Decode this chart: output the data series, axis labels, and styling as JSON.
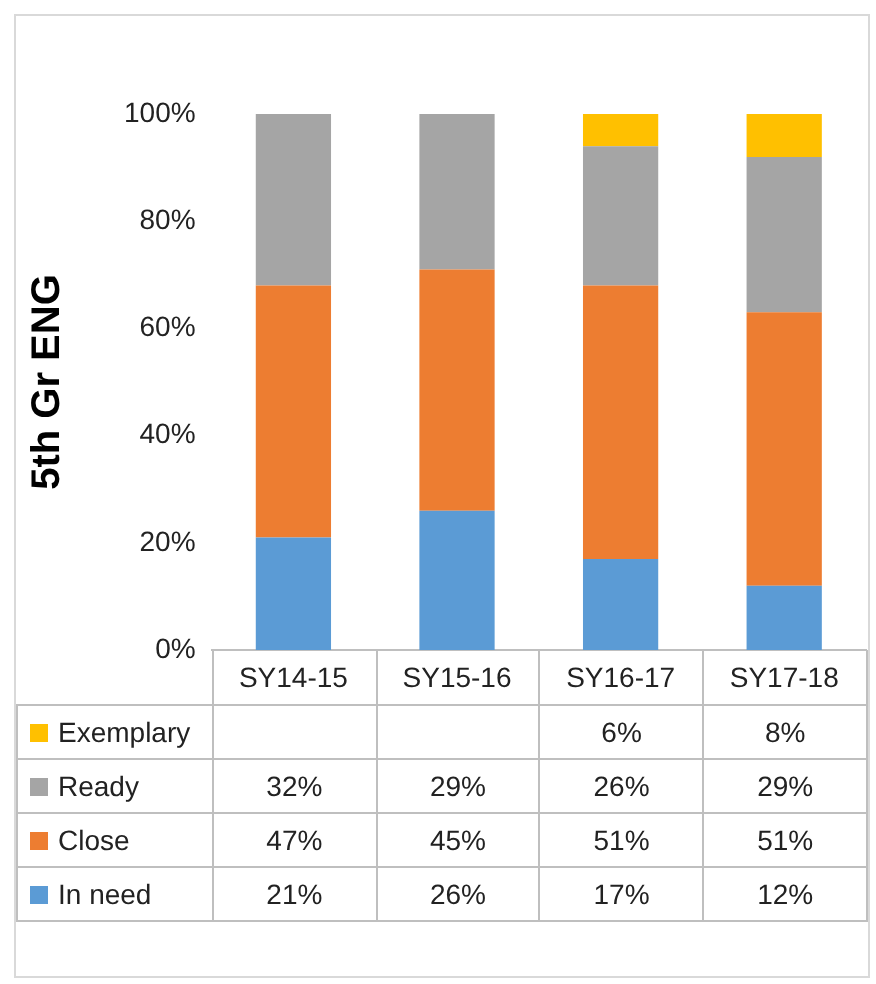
{
  "chart_data": {
    "type": "bar",
    "stacked": true,
    "ylabel": "5th Gr ENG",
    "categories": [
      "SY14-15",
      "SY15-16",
      "SY16-17",
      "SY17-18"
    ],
    "ylim": [
      0,
      100
    ],
    "yticks": [
      {
        "value": 0,
        "label": "0%"
      },
      {
        "value": 20,
        "label": "20%"
      },
      {
        "value": 40,
        "label": "40%"
      },
      {
        "value": 60,
        "label": "60%"
      },
      {
        "value": 80,
        "label": "80%"
      },
      {
        "value": 100,
        "label": "100%"
      }
    ],
    "grid": false,
    "legend": "bottom",
    "series": [
      {
        "name": "In need",
        "color": "#5b9bd5",
        "values": [
          21,
          26,
          17,
          12
        ],
        "value_labels": [
          "21%",
          "26%",
          "17%",
          "12%"
        ]
      },
      {
        "name": "Close",
        "color": "#ed7d31",
        "values": [
          47,
          45,
          51,
          51
        ],
        "value_labels": [
          "47%",
          "45%",
          "51%",
          "51%"
        ]
      },
      {
        "name": "Ready",
        "color": "#a5a5a5",
        "values": [
          32,
          29,
          26,
          29
        ],
        "value_labels": [
          "32%",
          "29%",
          "26%",
          "29%"
        ]
      },
      {
        "name": "Exemplary",
        "color": "#ffc000",
        "values": [
          null,
          null,
          6,
          8
        ],
        "value_labels": [
          null,
          null,
          "6%",
          "8%"
        ]
      }
    ]
  }
}
